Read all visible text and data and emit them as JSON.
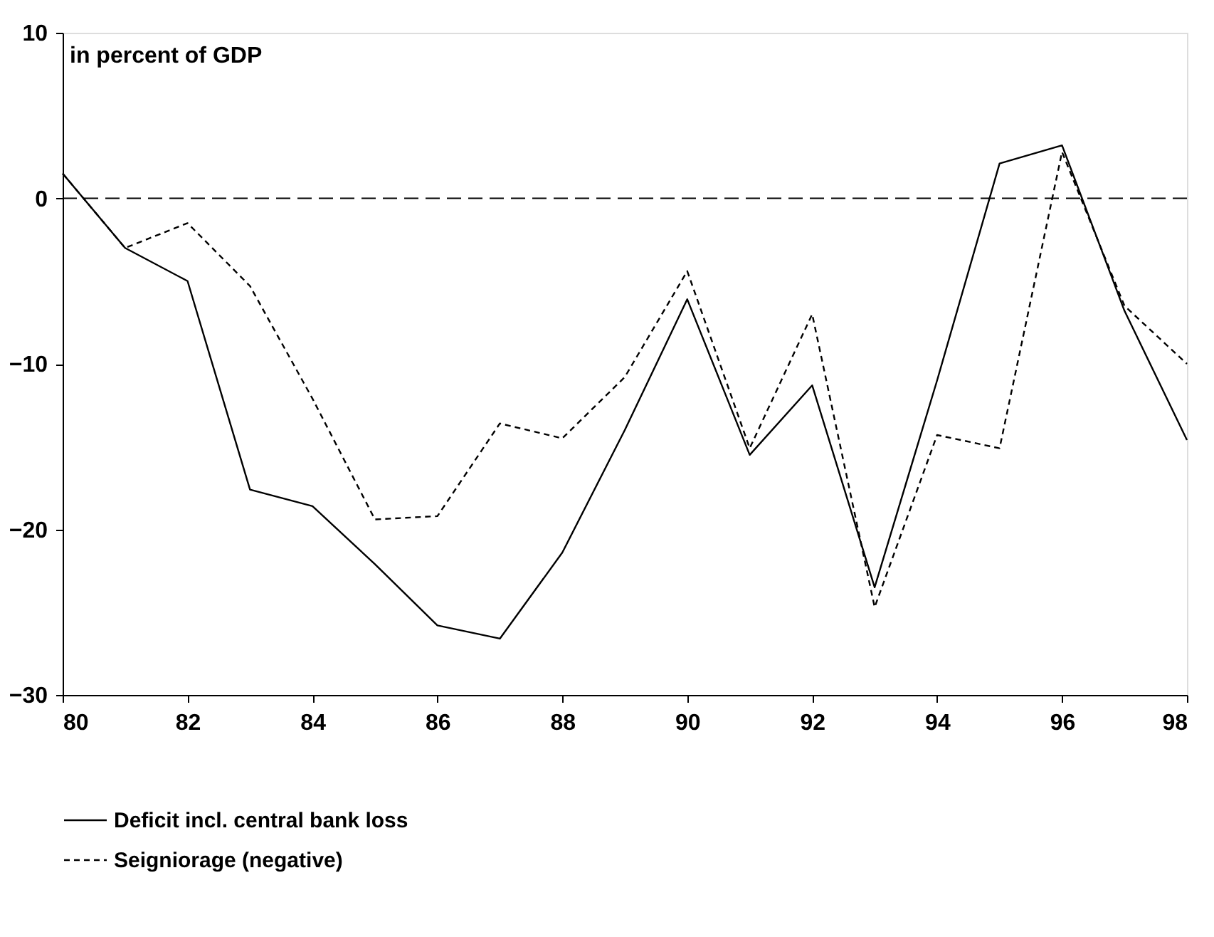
{
  "chart_data": {
    "type": "line",
    "ylabel": "in percent of GDP",
    "x": [
      80,
      81,
      82,
      83,
      84,
      85,
      86,
      87,
      88,
      89,
      90,
      91,
      92,
      93,
      94,
      95,
      96,
      97,
      98
    ],
    "series": [
      {
        "name": "Deficit incl. central bank loss",
        "color": "#000000",
        "line_style": "solid",
        "values": [
          1.5,
          -3.0,
          -5.0,
          -17.6,
          -18.6,
          -22.1,
          -25.8,
          -26.6,
          -21.4,
          -14.0,
          -6.1,
          -15.5,
          -11.3,
          -23.5,
          -11.0,
          2.1,
          3.2,
          -6.8,
          -14.6
        ]
      },
      {
        "name": "Seigniorage (negative)",
        "color": "#000000",
        "line_style": "dashed",
        "values": [
          1.5,
          -3.0,
          -1.5,
          -5.3,
          -12.1,
          -19.4,
          -19.2,
          -13.6,
          -14.5,
          -10.8,
          -4.4,
          -15.1,
          -7.0,
          -24.7,
          -14.3,
          -15.1,
          2.8,
          -6.5,
          -10.0
        ]
      }
    ],
    "xlim": [
      80,
      98
    ],
    "xticks": [
      80,
      82,
      84,
      86,
      88,
      90,
      92,
      94,
      96,
      98
    ],
    "ylim": [
      -30,
      10
    ],
    "yticks": [
      -30,
      -20,
      -10,
      0,
      10
    ],
    "ref_lines": [
      {
        "axis": "y",
        "value": 0,
        "color": "#000000",
        "line_style": "dashed"
      }
    ],
    "grid": false,
    "legend": "bottom",
    "marker": "none"
  }
}
